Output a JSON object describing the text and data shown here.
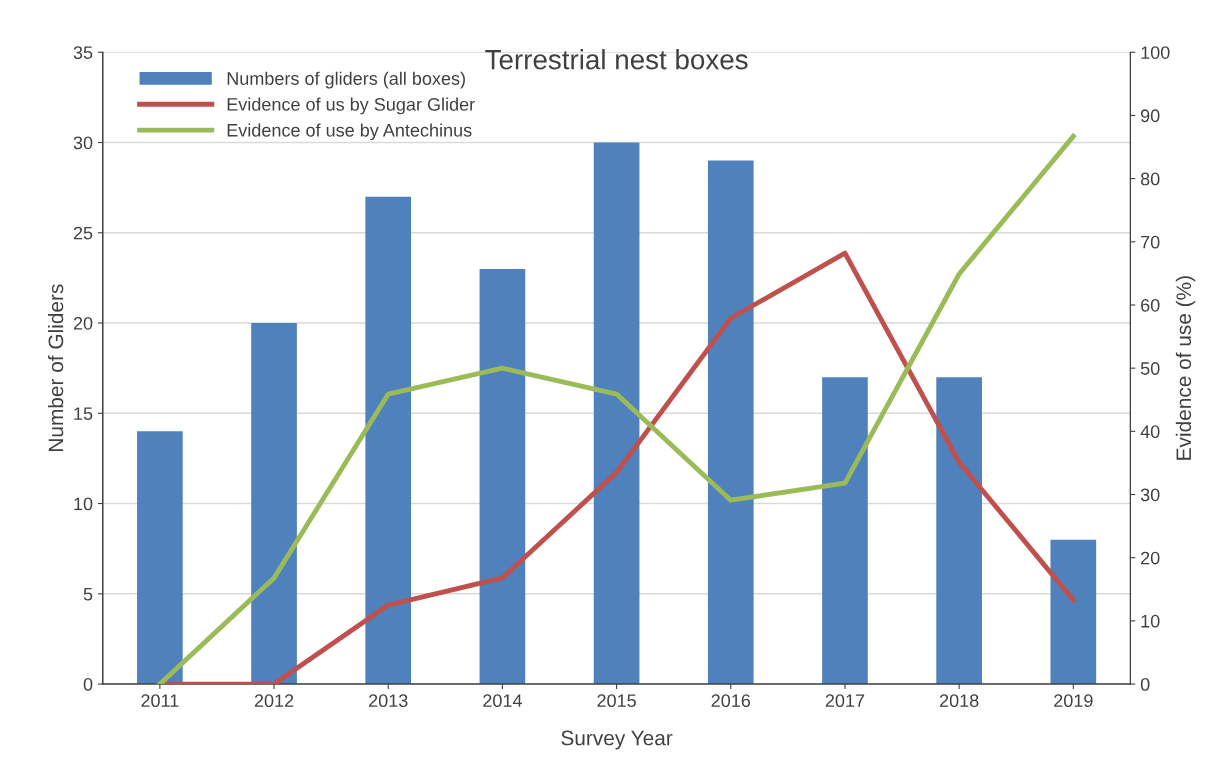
{
  "chart_data": {
    "type": "bar",
    "title": "Terrestrial nest boxes",
    "xlabel": "Survey Year",
    "ylabel": "Number of Gliders",
    "y2label": "Evidence of use (%)",
    "categories": [
      "2011",
      "2012",
      "2013",
      "2014",
      "2015",
      "2016",
      "2017",
      "2018",
      "2019"
    ],
    "series": [
      {
        "name": "Numbers of gliders (all boxes)",
        "color": "#4f81bd",
        "values": [
          14,
          20,
          27,
          23,
          30,
          29,
          17,
          17,
          8
        ]
      },
      {
        "name": "Evidence of us by Sugar Glider",
        "type": "line",
        "axis": "y2",
        "color": "#c0504d",
        "values": [
          0,
          0,
          12.5,
          16.8,
          33.5,
          57.9,
          68.2,
          35.1,
          13.3
        ]
      },
      {
        "name": "Evidence of use by Antechinus",
        "type": "line",
        "axis": "y2",
        "color": "#9bbb59",
        "values": [
          0,
          16.8,
          45.9,
          50,
          45.9,
          29.1,
          31.8,
          64.9,
          86.7
        ]
      }
    ],
    "ylim": [
      0,
      35
    ],
    "yticks": [
      0,
      5,
      10,
      15,
      20,
      25,
      30,
      35
    ],
    "y2lim": [
      0,
      100
    ],
    "y2ticks": [
      0,
      10,
      20,
      30,
      40,
      50,
      60,
      70,
      80,
      90,
      100
    ],
    "grid": "y",
    "legend": "top left",
    "marker": "none",
    "line_style": "solid"
  }
}
